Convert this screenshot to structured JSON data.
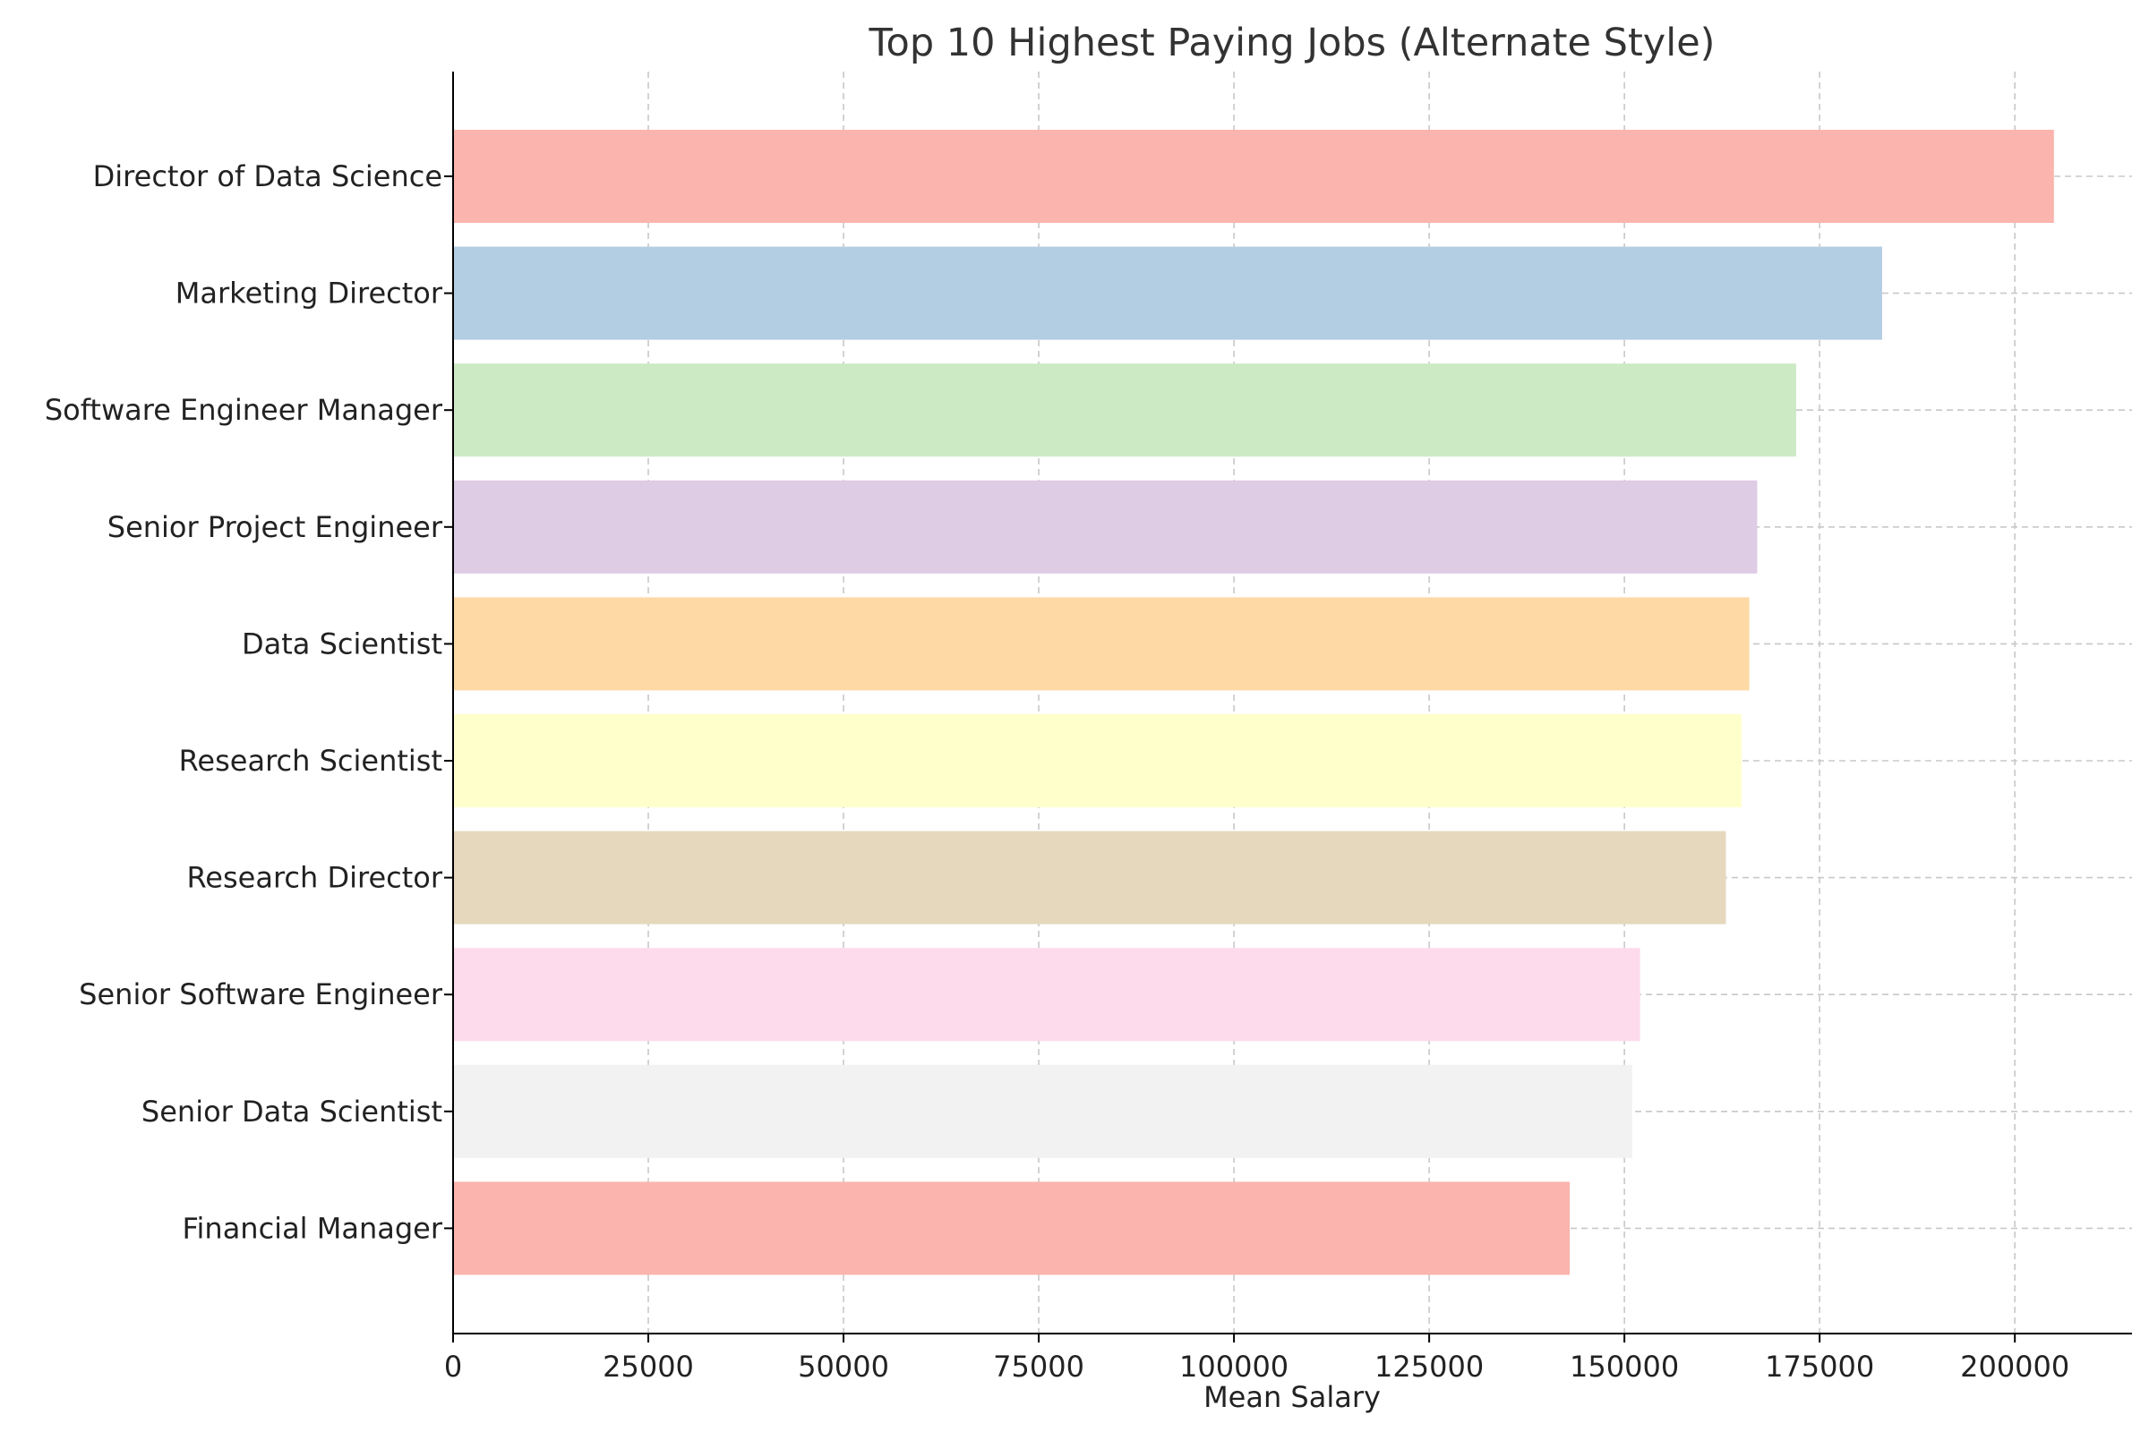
{
  "chart_data": {
    "type": "bar",
    "orientation": "horizontal",
    "title": "Top 10 Highest Paying Jobs (Alternate Style)",
    "xlabel": "Mean Salary",
    "ylabel": "",
    "categories": [
      "Director of Data Science",
      "Marketing Director",
      "Software Engineer Manager",
      "Senior Project Engineer",
      "Data Scientist",
      "Research Scientist",
      "Research Director",
      "Senior Software Engineer",
      "Senior Data Scientist",
      "Financial Manager"
    ],
    "values": [
      205000,
      183000,
      172000,
      167000,
      166000,
      165000,
      163000,
      152000,
      151000,
      143000
    ],
    "colors": [
      "#fbb4ae",
      "#b3cde3",
      "#ccebc5",
      "#decbe4",
      "#fed9a6",
      "#ffffcc",
      "#e5d8bd",
      "#fddaec",
      "#f2f2f2",
      "#fbb4ae"
    ],
    "xlim": [
      0,
      215000
    ],
    "xticks": [
      0,
      25000,
      50000,
      75000,
      100000,
      125000,
      150000,
      175000,
      200000
    ],
    "xtick_labels": [
      "0",
      "25000",
      "50000",
      "75000",
      "100000",
      "125000",
      "150000",
      "175000",
      "200000"
    ],
    "grid": true,
    "grid_style": "dashed"
  }
}
